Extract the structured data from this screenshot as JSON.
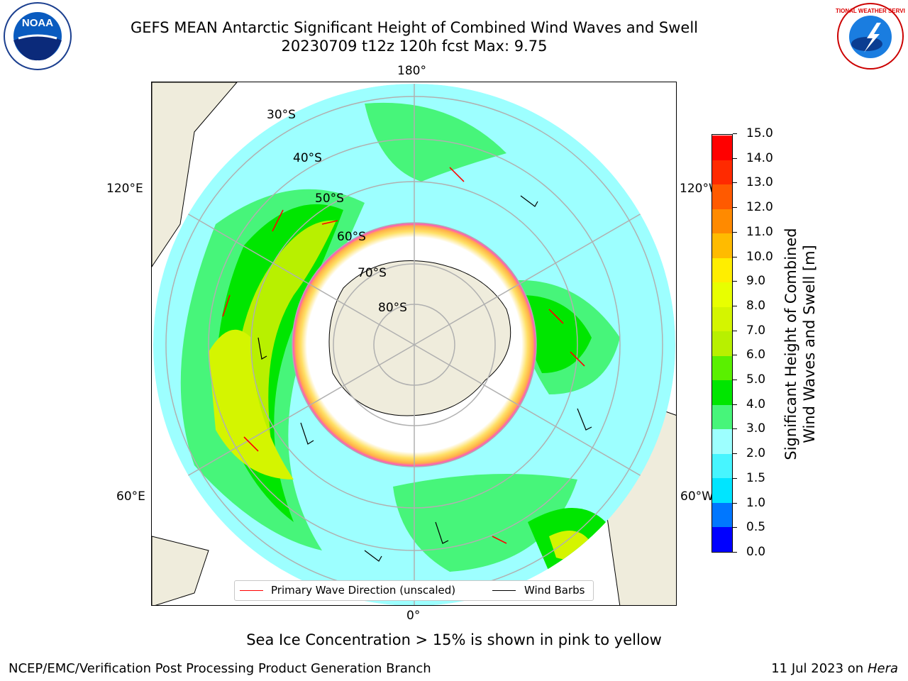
{
  "title": {
    "line1": "GEFS MEAN Antarctic Significant Height of Combined Wind Waves and Swell",
    "line2": "20230709 t12z 120h fcst   Max: 9.75"
  },
  "map": {
    "longitude_labels": [
      "180°",
      "120°E",
      "120°W",
      "60°E",
      "60°W",
      "0°"
    ],
    "latitude_labels": [
      "30°S",
      "40°S",
      "50°S",
      "60°S",
      "70°S",
      "80°S"
    ],
    "land_color": "#efecdc",
    "ice_edge_colors": [
      "#ff3fd8",
      "#ffb347",
      "#ffe066"
    ]
  },
  "legend": {
    "wave_label": "Primary Wave Direction (unscaled)",
    "barb_label": "Wind Barbs",
    "wave_color": "#ff0000",
    "barb_color": "#000000"
  },
  "colorbar": {
    "label_line1": "Significant Height of Combined",
    "label_line2": "Wind Waves and Swell [m]",
    "ticks": [
      "0.0",
      "0.5",
      "1.0",
      "1.5",
      "2.0",
      "3.0",
      "4.0",
      "5.0",
      "6.0",
      "7.0",
      "8.0",
      "9.0",
      "10.0",
      "11.0",
      "12.0",
      "13.0",
      "14.0",
      "15.0"
    ],
    "colors": [
      "#0000ff",
      "#0077ff",
      "#00e5ff",
      "#47f5ff",
      "#9dffff",
      "#47f57a",
      "#00e600",
      "#5af000",
      "#b8f000",
      "#d4f500",
      "#e8ff00",
      "#ffee00",
      "#ffbb00",
      "#ff8a00",
      "#ff5a00",
      "#ff2a00",
      "#ff0000"
    ]
  },
  "caption": "Sea Ice Concentration > 15% is shown in pink to yellow",
  "footer": {
    "left": "NCEP/EMC/Verification Post Processing Product Generation Branch",
    "right_date": "11 Jul 2023 on ",
    "right_machine": "Hera"
  },
  "logos": {
    "noaa_text": "NOAA",
    "nws_text": "NATIONAL WEATHER SERVICE"
  }
}
